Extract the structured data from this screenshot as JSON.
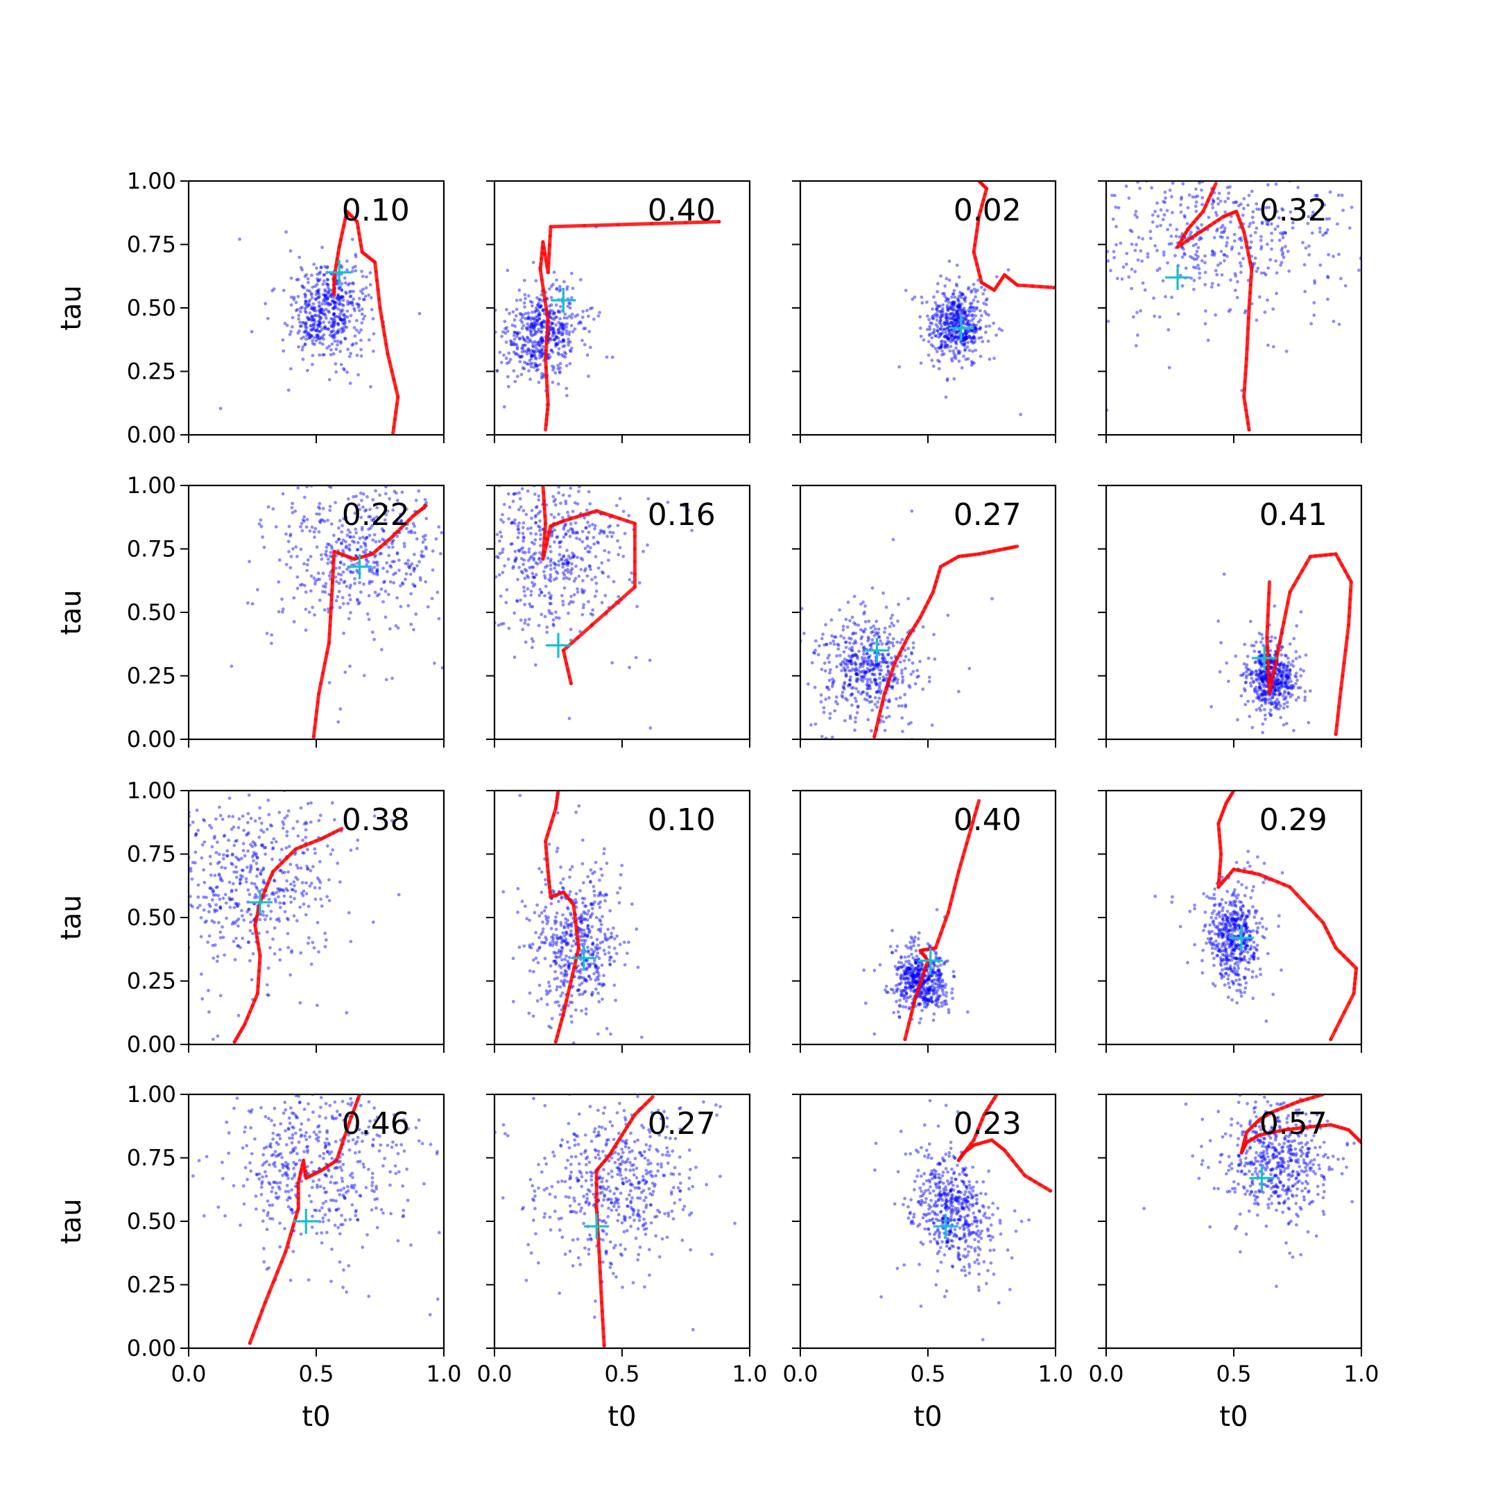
{
  "chart_data": {
    "type": "scatter",
    "layout": {
      "rows": 4,
      "cols": 4,
      "sharex": true,
      "sharey": true
    },
    "xlabel": "t0",
    "ylabel": "tau",
    "xlim": [
      0.0,
      1.0
    ],
    "ylim": [
      0.0,
      1.0
    ],
    "xticks": [
      0.0,
      0.5,
      1.0
    ],
    "xtick_labels": [
      "0.0",
      "0.5",
      "1.0"
    ],
    "yticks": [
      0.0,
      0.25,
      0.5,
      0.75,
      1.0
    ],
    "ytick_labels": [
      "0.00",
      "0.25",
      "0.50",
      "0.75",
      "1.00"
    ],
    "grid": false,
    "colors": {
      "samples": "#0000ff",
      "trajectory": "#ff0000",
      "truth": "#17becf"
    },
    "series_styles": {
      "samples": "scatter",
      "trajectory": "line-with-points",
      "truth": "plus-marker"
    },
    "panels": [
      {
        "label": "0.10",
        "truth": [
          0.59,
          0.64
        ],
        "cloud": {
          "cx": 0.54,
          "cy": 0.48,
          "sx": 0.07,
          "sy": 0.09,
          "n": 520,
          "rot": 0
        },
        "traj": [
          [
            0.8,
            0.0
          ],
          [
            0.82,
            0.15
          ],
          [
            0.78,
            0.32
          ],
          [
            0.75,
            0.5
          ],
          [
            0.73,
            0.68
          ],
          [
            0.68,
            0.72
          ],
          [
            0.66,
            0.84
          ],
          [
            0.62,
            0.88
          ],
          [
            0.59,
            0.74
          ],
          [
            0.57,
            0.62
          ],
          [
            0.57,
            0.55
          ]
        ]
      },
      {
        "label": "0.40",
        "truth": [
          0.27,
          0.53
        ],
        "cloud": {
          "cx": 0.19,
          "cy": 0.4,
          "sx": 0.07,
          "sy": 0.09,
          "n": 520,
          "rot": -0.5
        },
        "traj": [
          [
            0.88,
            0.84
          ],
          [
            0.22,
            0.82
          ],
          [
            0.21,
            0.64
          ],
          [
            0.19,
            0.76
          ],
          [
            0.18,
            0.65
          ],
          [
            0.21,
            0.45
          ],
          [
            0.2,
            0.3
          ],
          [
            0.21,
            0.12
          ],
          [
            0.2,
            0.02
          ]
        ]
      },
      {
        "label": "0.02",
        "truth": [
          0.63,
          0.42
        ],
        "cloud": {
          "cx": 0.61,
          "cy": 0.44,
          "sx": 0.05,
          "sy": 0.07,
          "n": 520,
          "rot": 0
        },
        "traj": [
          [
            1.0,
            0.58
          ],
          [
            0.85,
            0.59
          ],
          [
            0.8,
            0.63
          ],
          [
            0.76,
            0.57
          ],
          [
            0.71,
            0.6
          ],
          [
            0.68,
            0.72
          ],
          [
            0.7,
            0.86
          ],
          [
            0.73,
            0.97
          ],
          [
            0.7,
            1.0
          ]
        ]
      },
      {
        "label": "0.32",
        "truth": [
          0.28,
          0.62
        ],
        "cloud": {
          "cx": 0.45,
          "cy": 0.82,
          "sx": 0.25,
          "sy": 0.16,
          "n": 520,
          "rot": 0
        },
        "traj": [
          [
            0.56,
            0.02
          ],
          [
            0.54,
            0.15
          ],
          [
            0.55,
            0.3
          ],
          [
            0.56,
            0.5
          ],
          [
            0.57,
            0.65
          ],
          [
            0.54,
            0.8
          ],
          [
            0.51,
            0.88
          ],
          [
            0.46,
            0.86
          ],
          [
            0.37,
            0.8
          ],
          [
            0.28,
            0.74
          ],
          [
            0.32,
            0.81
          ],
          [
            0.38,
            0.88
          ],
          [
            0.43,
            0.99
          ]
        ]
      },
      {
        "label": "0.22",
        "truth": [
          0.67,
          0.68
        ],
        "cloud": {
          "cx": 0.68,
          "cy": 0.75,
          "sx": 0.16,
          "sy": 0.16,
          "n": 520,
          "rot": 0
        },
        "traj": [
          [
            0.49,
            0.01
          ],
          [
            0.51,
            0.18
          ],
          [
            0.55,
            0.38
          ],
          [
            0.56,
            0.55
          ],
          [
            0.57,
            0.74
          ],
          [
            0.65,
            0.71
          ],
          [
            0.72,
            0.73
          ],
          [
            0.8,
            0.8
          ],
          [
            0.88,
            0.88
          ],
          [
            0.93,
            0.92
          ]
        ]
      },
      {
        "label": "0.16",
        "truth": [
          0.25,
          0.37
        ],
        "cloud": {
          "cx": 0.22,
          "cy": 0.74,
          "sx": 0.14,
          "sy": 0.15,
          "n": 520,
          "rot": 0
        },
        "traj": [
          [
            0.3,
            0.22
          ],
          [
            0.27,
            0.35
          ],
          [
            0.55,
            0.6
          ],
          [
            0.55,
            0.85
          ],
          [
            0.4,
            0.9
          ],
          [
            0.27,
            0.86
          ],
          [
            0.22,
            0.84
          ],
          [
            0.19,
            0.71
          ],
          [
            0.2,
            0.85
          ],
          [
            0.19,
            1.0
          ]
        ]
      },
      {
        "label": "0.27",
        "truth": [
          0.3,
          0.35
        ],
        "cloud": {
          "cx": 0.27,
          "cy": 0.28,
          "sx": 0.09,
          "sy": 0.1,
          "n": 520,
          "rot": 0
        },
        "traj": [
          [
            0.29,
            0.01
          ],
          [
            0.33,
            0.18
          ],
          [
            0.37,
            0.3
          ],
          [
            0.42,
            0.4
          ],
          [
            0.47,
            0.48
          ],
          [
            0.52,
            0.58
          ],
          [
            0.55,
            0.68
          ],
          [
            0.62,
            0.72
          ],
          [
            0.7,
            0.73
          ],
          [
            0.8,
            0.75
          ],
          [
            0.85,
            0.76
          ]
        ]
      },
      {
        "label": "0.41",
        "truth": [
          0.62,
          0.32
        ],
        "cloud": {
          "cx": 0.65,
          "cy": 0.24,
          "sx": 0.05,
          "sy": 0.07,
          "n": 520,
          "rot": 0
        },
        "traj": [
          [
            0.9,
            0.02
          ],
          [
            0.92,
            0.2
          ],
          [
            0.95,
            0.45
          ],
          [
            0.96,
            0.62
          ],
          [
            0.9,
            0.73
          ],
          [
            0.8,
            0.72
          ],
          [
            0.72,
            0.58
          ],
          [
            0.68,
            0.38
          ],
          [
            0.64,
            0.18
          ],
          [
            0.63,
            0.4
          ],
          [
            0.64,
            0.62
          ]
        ]
      },
      {
        "label": "0.38",
        "truth": [
          0.28,
          0.56
        ],
        "cloud": {
          "cx": 0.25,
          "cy": 0.65,
          "sx": 0.16,
          "sy": 0.17,
          "n": 520,
          "rot": 0
        },
        "traj": [
          [
            0.18,
            0.01
          ],
          [
            0.22,
            0.08
          ],
          [
            0.27,
            0.2
          ],
          [
            0.28,
            0.35
          ],
          [
            0.26,
            0.47
          ],
          [
            0.28,
            0.56
          ],
          [
            0.33,
            0.68
          ],
          [
            0.42,
            0.77
          ],
          [
            0.52,
            0.81
          ],
          [
            0.6,
            0.85
          ]
        ]
      },
      {
        "label": "0.10",
        "truth": [
          0.35,
          0.34
        ],
        "cloud": {
          "cx": 0.31,
          "cy": 0.4,
          "sx": 0.08,
          "sy": 0.14,
          "n": 520,
          "rot": 0
        },
        "traj": [
          [
            0.24,
            0.01
          ],
          [
            0.27,
            0.12
          ],
          [
            0.3,
            0.25
          ],
          [
            0.33,
            0.38
          ],
          [
            0.31,
            0.55
          ],
          [
            0.27,
            0.6
          ],
          [
            0.22,
            0.58
          ],
          [
            0.21,
            0.68
          ],
          [
            0.2,
            0.8
          ],
          [
            0.24,
            0.93
          ],
          [
            0.25,
            1.0
          ]
        ]
      },
      {
        "label": "0.40",
        "truth": [
          0.51,
          0.33
        ],
        "cloud": {
          "cx": 0.47,
          "cy": 0.25,
          "sx": 0.05,
          "sy": 0.06,
          "n": 520,
          "rot": 0
        },
        "traj": [
          [
            0.41,
            0.02
          ],
          [
            0.45,
            0.18
          ],
          [
            0.5,
            0.33
          ],
          [
            0.47,
            0.37
          ],
          [
            0.53,
            0.38
          ],
          [
            0.58,
            0.52
          ],
          [
            0.62,
            0.68
          ],
          [
            0.66,
            0.82
          ],
          [
            0.7,
            0.96
          ]
        ]
      },
      {
        "label": "0.29",
        "truth": [
          0.53,
          0.42
        ],
        "cloud": {
          "cx": 0.5,
          "cy": 0.42,
          "sx": 0.05,
          "sy": 0.09,
          "n": 520,
          "rot": 0
        },
        "traj": [
          [
            0.88,
            0.02
          ],
          [
            0.97,
            0.2
          ],
          [
            0.98,
            0.3
          ],
          [
            0.9,
            0.38
          ],
          [
            0.85,
            0.48
          ],
          [
            0.72,
            0.62
          ],
          [
            0.6,
            0.67
          ],
          [
            0.5,
            0.69
          ],
          [
            0.44,
            0.62
          ],
          [
            0.45,
            0.75
          ],
          [
            0.44,
            0.87
          ],
          [
            0.47,
            0.95
          ],
          [
            0.5,
            1.0
          ]
        ]
      },
      {
        "label": "0.46",
        "truth": [
          0.46,
          0.5
        ],
        "cloud": {
          "cx": 0.5,
          "cy": 0.73,
          "sx": 0.18,
          "sy": 0.17,
          "n": 520,
          "rot": 0
        },
        "traj": [
          [
            0.24,
            0.02
          ],
          [
            0.3,
            0.18
          ],
          [
            0.38,
            0.38
          ],
          [
            0.43,
            0.55
          ],
          [
            0.43,
            0.65
          ],
          [
            0.45,
            0.74
          ],
          [
            0.46,
            0.67
          ],
          [
            0.52,
            0.7
          ],
          [
            0.58,
            0.74
          ],
          [
            0.63,
            0.89
          ],
          [
            0.67,
            1.0
          ]
        ]
      },
      {
        "label": "0.27",
        "truth": [
          0.4,
          0.48
        ],
        "cloud": {
          "cx": 0.48,
          "cy": 0.65,
          "sx": 0.16,
          "sy": 0.16,
          "n": 520,
          "rot": 0
        },
        "traj": [
          [
            0.43,
            0.01
          ],
          [
            0.42,
            0.18
          ],
          [
            0.41,
            0.38
          ],
          [
            0.4,
            0.55
          ],
          [
            0.4,
            0.7
          ],
          [
            0.45,
            0.76
          ],
          [
            0.5,
            0.84
          ],
          [
            0.55,
            0.92
          ],
          [
            0.62,
            0.99
          ]
        ]
      },
      {
        "label": "0.23",
        "truth": [
          0.57,
          0.48
        ],
        "cloud": {
          "cx": 0.6,
          "cy": 0.54,
          "sx": 0.07,
          "sy": 0.11,
          "n": 520,
          "rot": 0.3
        },
        "traj": [
          [
            0.98,
            0.62
          ],
          [
            0.88,
            0.68
          ],
          [
            0.8,
            0.78
          ],
          [
            0.75,
            0.82
          ],
          [
            0.68,
            0.8
          ],
          [
            0.64,
            0.77
          ],
          [
            0.62,
            0.74
          ],
          [
            0.68,
            0.82
          ],
          [
            0.72,
            0.92
          ],
          [
            0.77,
            1.0
          ]
        ]
      },
      {
        "label": "0.57",
        "truth": [
          0.61,
          0.67
        ],
        "cloud": {
          "cx": 0.67,
          "cy": 0.74,
          "sx": 0.1,
          "sy": 0.11,
          "n": 520,
          "rot": 0.3
        },
        "traj": [
          [
            1.0,
            0.81
          ],
          [
            0.95,
            0.86
          ],
          [
            0.88,
            0.88
          ],
          [
            0.78,
            0.87
          ],
          [
            0.7,
            0.86
          ],
          [
            0.6,
            0.84
          ],
          [
            0.55,
            0.81
          ],
          [
            0.53,
            0.77
          ],
          [
            0.55,
            0.85
          ],
          [
            0.6,
            0.9
          ],
          [
            0.65,
            0.93
          ],
          [
            0.75,
            0.97
          ],
          [
            0.85,
            1.0
          ]
        ]
      }
    ]
  }
}
